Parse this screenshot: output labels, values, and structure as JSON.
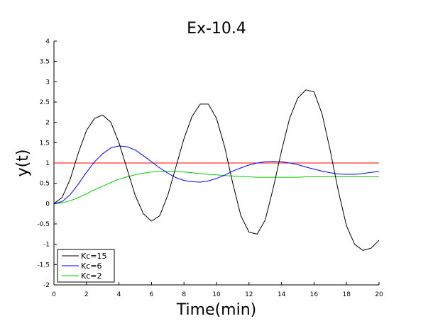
{
  "chart_data": {
    "type": "line",
    "title": "Ex-10.4",
    "xlabel": "Time(min)",
    "ylabel": "y(t)",
    "xlim": [
      0,
      20
    ],
    "ylim": [
      -2,
      4
    ],
    "xticks": [
      0,
      2,
      4,
      6,
      8,
      10,
      12,
      14,
      16,
      18,
      20
    ],
    "yticks": [
      -2,
      -1.5,
      -1,
      -0.5,
      0,
      0.5,
      1,
      1.5,
      2,
      2.5,
      3,
      3.5,
      4
    ],
    "grid": false,
    "legend_position": "bottom-left",
    "series": [
      {
        "name": "Kc=15",
        "color": "#000000",
        "x": [
          0,
          0.5,
          1,
          1.5,
          2,
          2.5,
          3,
          3.5,
          4,
          4.5,
          5,
          5.5,
          6,
          6.5,
          7,
          7.5,
          8,
          8.5,
          9,
          9.5,
          10,
          10.5,
          11,
          11.5,
          12,
          12.5,
          13,
          13.5,
          14,
          14.5,
          15,
          15.5,
          16,
          16.5,
          17,
          17.5,
          18,
          18.5,
          19,
          19.5,
          20
        ],
        "values": [
          0,
          0.15,
          0.6,
          1.25,
          1.8,
          2.1,
          2.18,
          2.0,
          1.5,
          0.85,
          0.2,
          -0.25,
          -0.43,
          -0.3,
          0.2,
          0.9,
          1.6,
          2.15,
          2.45,
          2.45,
          2.1,
          1.4,
          0.5,
          -0.3,
          -0.7,
          -0.75,
          -0.4,
          0.4,
          1.3,
          2.1,
          2.6,
          2.8,
          2.75,
          2.2,
          1.3,
          0.3,
          -0.55,
          -1.0,
          -1.15,
          -1.1,
          -0.9
        ]
      },
      {
        "name": "Kc=6",
        "color": "#0000ff",
        "x": [
          0,
          0.5,
          1,
          1.5,
          2,
          2.5,
          3,
          3.5,
          4,
          4.5,
          5,
          5.5,
          6,
          6.5,
          7,
          7.5,
          8,
          8.5,
          9,
          9.5,
          10,
          10.5,
          11,
          11.5,
          12,
          12.5,
          13,
          13.5,
          14,
          14.5,
          15,
          15.5,
          16,
          16.5,
          17,
          17.5,
          18,
          18.5,
          19,
          19.5,
          20
        ],
        "values": [
          0,
          0.05,
          0.22,
          0.48,
          0.77,
          1.03,
          1.23,
          1.37,
          1.42,
          1.4,
          1.32,
          1.18,
          1.03,
          0.88,
          0.75,
          0.64,
          0.57,
          0.54,
          0.53,
          0.56,
          0.62,
          0.7,
          0.8,
          0.88,
          0.95,
          1.0,
          1.03,
          1.04,
          1.03,
          1.0,
          0.96,
          0.9,
          0.85,
          0.8,
          0.76,
          0.73,
          0.72,
          0.72,
          0.74,
          0.77,
          0.79
        ]
      },
      {
        "name": "Kc=2",
        "color": "#00cc00",
        "x": [
          0,
          0.5,
          1,
          1.5,
          2,
          2.5,
          3,
          3.5,
          4,
          4.5,
          5,
          5.5,
          6,
          6.5,
          7,
          7.5,
          8,
          8.5,
          9,
          9.5,
          10,
          10.5,
          11,
          11.5,
          12,
          12.5,
          13,
          13.5,
          14,
          14.5,
          15,
          15.5,
          16,
          16.5,
          17,
          17.5,
          18,
          18.5,
          19,
          19.5,
          20
        ],
        "values": [
          0,
          0.02,
          0.07,
          0.15,
          0.24,
          0.34,
          0.43,
          0.52,
          0.6,
          0.66,
          0.71,
          0.75,
          0.78,
          0.79,
          0.8,
          0.79,
          0.78,
          0.76,
          0.74,
          0.72,
          0.71,
          0.69,
          0.68,
          0.67,
          0.66,
          0.65,
          0.65,
          0.65,
          0.65,
          0.65,
          0.65,
          0.66,
          0.66,
          0.66,
          0.66,
          0.66,
          0.66,
          0.66,
          0.66,
          0.66,
          0.66
        ]
      },
      {
        "color": "#ff0000",
        "x": [
          0,
          20
        ],
        "values": [
          1,
          1
        ]
      }
    ]
  }
}
